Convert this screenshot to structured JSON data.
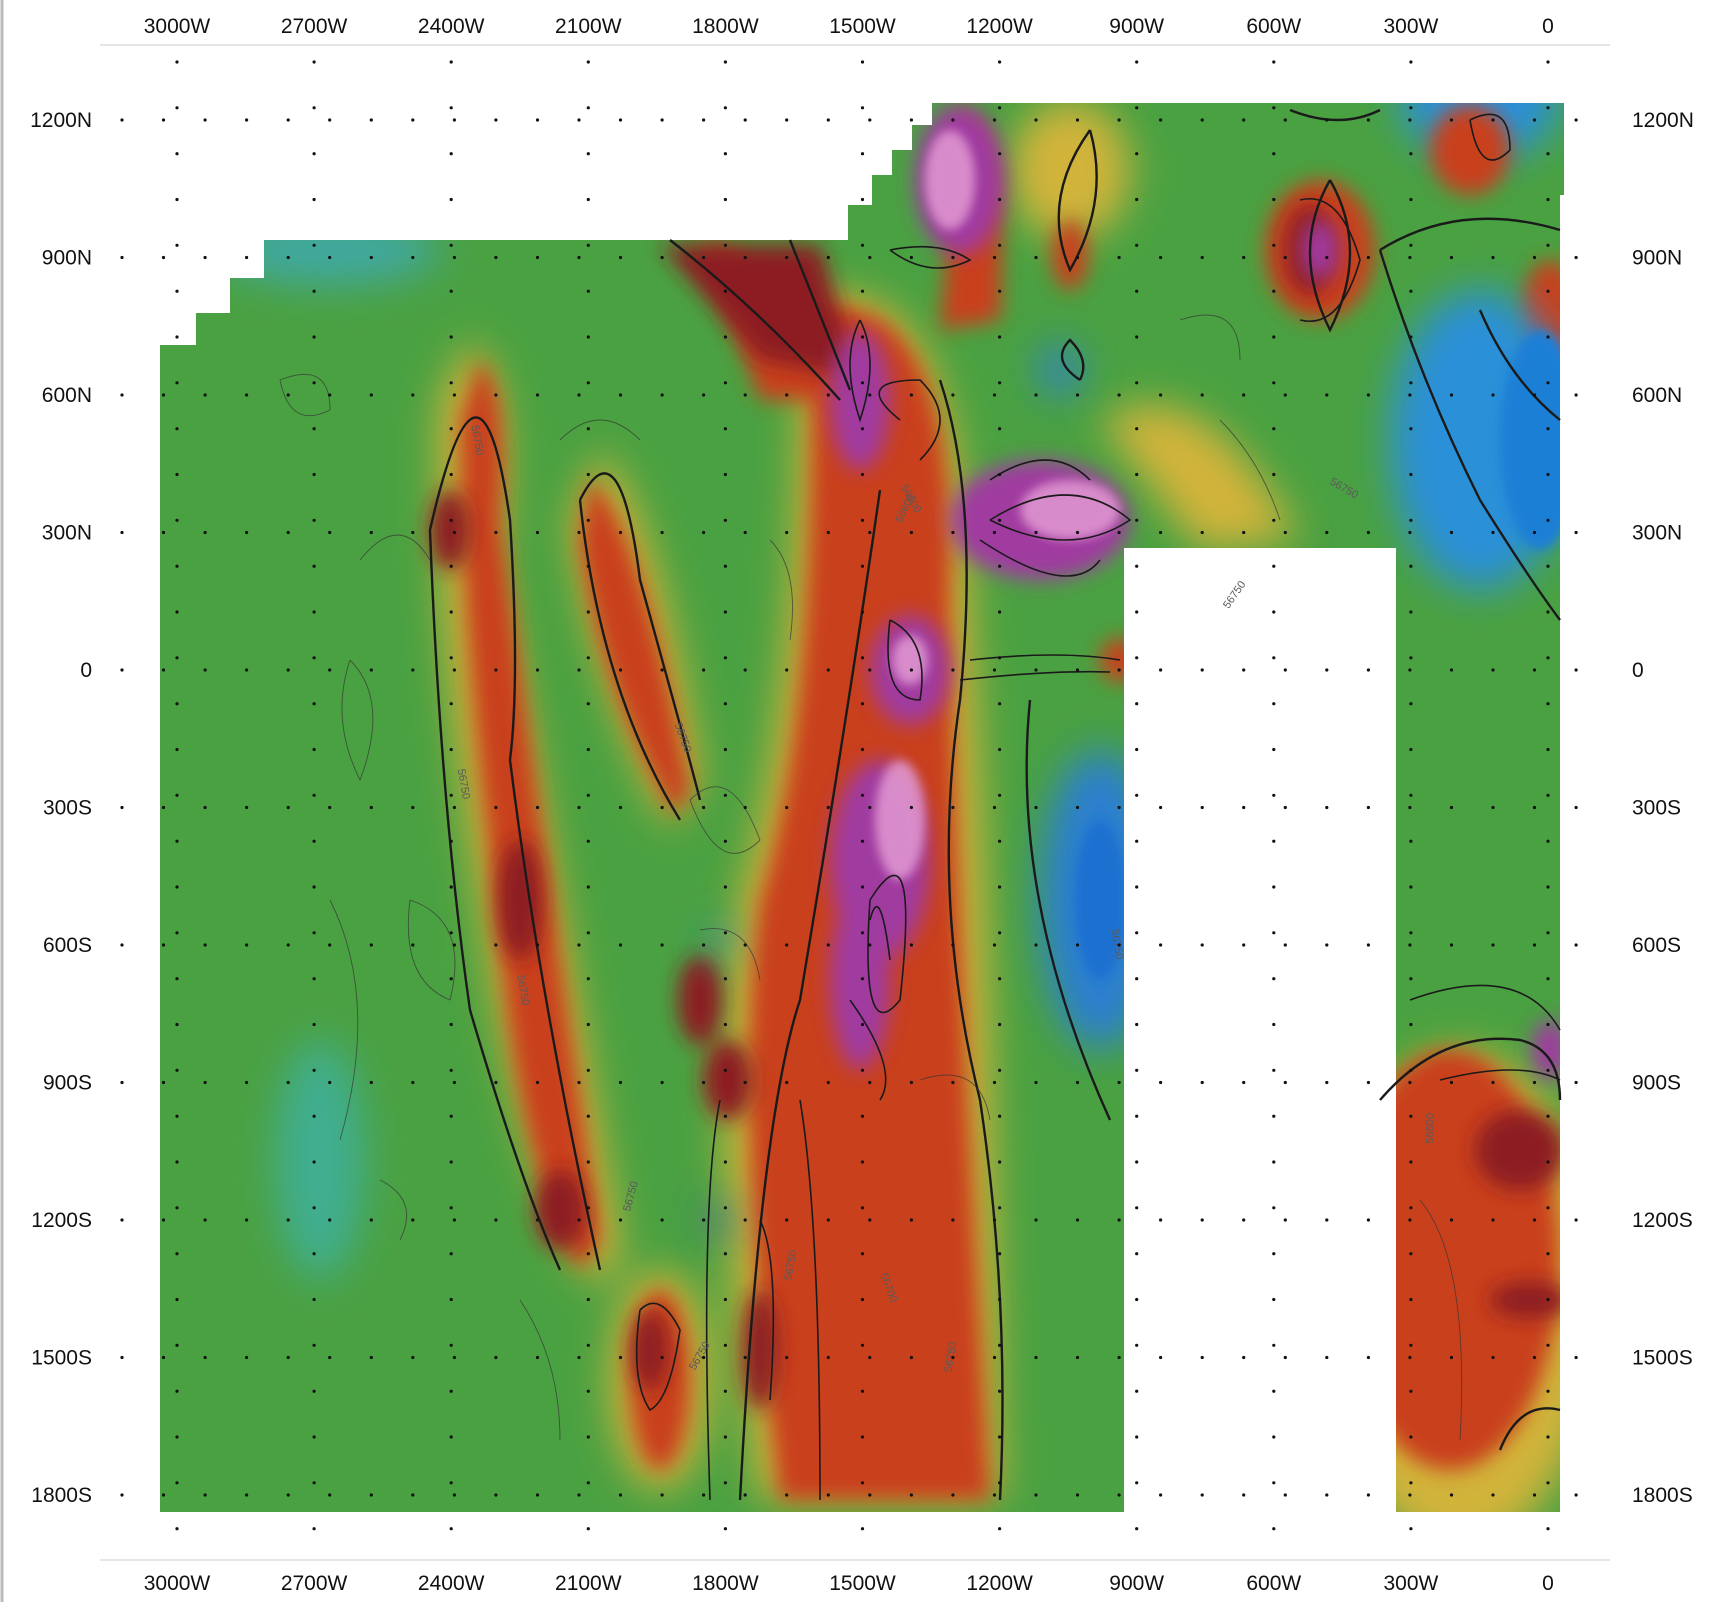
{
  "map": {
    "x_axis": {
      "top_labels": [
        "3000W",
        "2700W",
        "2400W",
        "2100W",
        "1800W",
        "1500W",
        "1200W",
        "900W",
        "600W",
        "300W",
        "0"
      ],
      "bottom_labels": [
        "3000W",
        "2700W",
        "2400W",
        "2100W",
        "1800W",
        "1500W",
        "1200W",
        "900W",
        "600W",
        "300W",
        "0"
      ],
      "values": [
        -3000,
        -2700,
        -2400,
        -2100,
        -1800,
        -1500,
        -1200,
        -900,
        -600,
        -300,
        0
      ]
    },
    "y_axis": {
      "left_labels": [
        "1200N",
        "900N",
        "600N",
        "300N",
        "0",
        "300S",
        "600S",
        "900S",
        "1200S",
        "1500S",
        "1800S"
      ],
      "right_labels": [
        "1200N",
        "900N",
        "600N",
        "300N",
        "0",
        "300S",
        "600S",
        "900S",
        "1200S",
        "1500S",
        "1800S"
      ],
      "values": [
        1200,
        900,
        600,
        300,
        0,
        -300,
        -600,
        -900,
        -1200,
        -1500,
        -1800
      ]
    },
    "contour_labels": [
      "56750",
      "56750",
      "56750",
      "56750",
      "56750",
      "56750",
      "56700",
      "56600",
      "56600",
      "56750",
      "56750",
      "56750",
      "56750",
      "56600",
      "56750"
    ],
    "colors": {
      "background": "#4aa142",
      "low": "#1a8fd0",
      "mid": "#f0c040",
      "high": "#c0361c",
      "peak": "#8a1f8a",
      "empty": "#ffffff"
    }
  }
}
